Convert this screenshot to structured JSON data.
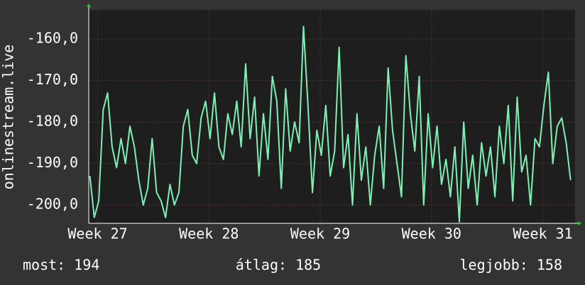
{
  "chart_data": {
    "type": "line",
    "ylabel": "onlinestream.live",
    "x": [
      26.93,
      26.97,
      27.01,
      27.05,
      27.09,
      27.13,
      27.17,
      27.21,
      27.25,
      27.29,
      27.33,
      27.37,
      27.41,
      27.45,
      27.49,
      27.53,
      27.57,
      27.61,
      27.65,
      27.69,
      27.73,
      27.77,
      27.81,
      27.85,
      27.89,
      27.93,
      27.97,
      28.01,
      28.05,
      28.09,
      28.13,
      28.17,
      28.21,
      28.25,
      28.29,
      28.33,
      28.37,
      28.41,
      28.45,
      28.49,
      28.53,
      28.57,
      28.61,
      28.65,
      28.69,
      28.73,
      28.77,
      28.81,
      28.85,
      28.89,
      28.93,
      28.97,
      29.01,
      29.05,
      29.09,
      29.13,
      29.17,
      29.21,
      29.25,
      29.29,
      29.33,
      29.37,
      29.41,
      29.45,
      29.49,
      29.53,
      29.57,
      29.61,
      29.65,
      29.69,
      29.73,
      29.77,
      29.81,
      29.85,
      29.89,
      29.93,
      29.97,
      30.01,
      30.05,
      30.09,
      30.13,
      30.17,
      30.21,
      30.25,
      30.29,
      30.33,
      30.37,
      30.41,
      30.45,
      30.49,
      30.53,
      30.57,
      30.61,
      30.65,
      30.69,
      30.73,
      30.77,
      30.81,
      30.85,
      30.89,
      30.93,
      30.97,
      31.01,
      31.05,
      31.09,
      31.13,
      31.17,
      31.21,
      31.25
    ],
    "series": [
      {
        "name": "onlinestream.live",
        "color": "#7ff0b4",
        "values": [
          -193,
          -203,
          -199,
          -177,
          -173,
          -186,
          -191,
          -184,
          -190,
          -181,
          -186,
          -194,
          -200,
          -196,
          -184,
          -197,
          -199,
          -203,
          -195,
          -200,
          -197,
          -181,
          -177,
          -188,
          -190,
          -179,
          -175,
          -184,
          -173,
          -186,
          -189,
          -178,
          -183,
          -175,
          -186,
          -166,
          -184,
          -174,
          -193,
          -178,
          -189,
          -169,
          -175,
          -196,
          -172,
          -187,
          -180,
          -185,
          -157,
          -176,
          -197,
          -182,
          -188,
          -176,
          -193,
          -187,
          -162,
          -191,
          -183,
          -200,
          -178,
          -194,
          -186,
          -200,
          -188,
          -181,
          -196,
          -167,
          -182,
          -190,
          -198,
          -164,
          -178,
          -187,
          -169,
          -200,
          -178,
          -191,
          -181,
          -195,
          -189,
          -198,
          -186,
          -204,
          -180,
          -196,
          -188,
          -200,
          -185,
          -193,
          -186,
          -198,
          -181,
          -190,
          -176,
          -199,
          -174,
          -192,
          -188,
          -200,
          -184,
          -186,
          -176,
          -168,
          -190,
          -181,
          -179,
          -185,
          -194
        ]
      }
    ],
    "xlim": [
      26.92,
      31.29
    ],
    "xticks": [
      {
        "value": 27,
        "label": "Week 27"
      },
      {
        "value": 28,
        "label": "Week 28"
      },
      {
        "value": 29,
        "label": "Week 29"
      },
      {
        "value": 30,
        "label": "Week 30"
      },
      {
        "value": 31,
        "label": "Week 31"
      }
    ],
    "ylim": [
      -204.4,
      -153
    ],
    "yticks": [
      {
        "value": -160,
        "label": "-160,0"
      },
      {
        "value": -170,
        "label": "-170,0"
      },
      {
        "value": -180,
        "label": "-180,0"
      },
      {
        "value": -190,
        "label": "-190,0"
      },
      {
        "value": -200,
        "label": "-200,0"
      }
    ],
    "grid": true,
    "stats": [
      "most: 194",
      "átlag: 185",
      "legjobb: 158"
    ]
  }
}
